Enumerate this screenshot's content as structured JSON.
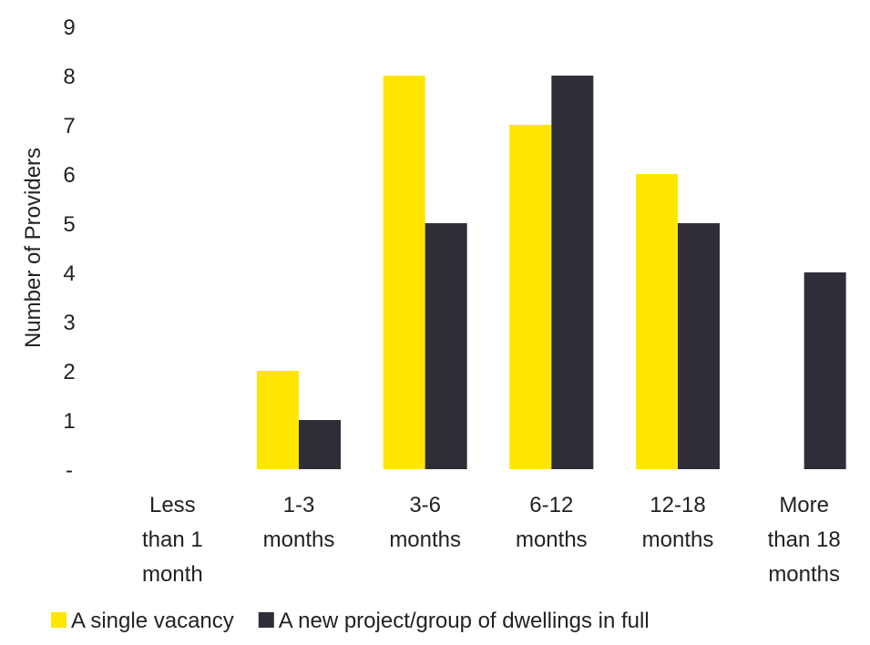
{
  "chart_data": {
    "type": "bar",
    "ylabel": "Number of Providers",
    "xlabel": "",
    "ylim": [
      0,
      9
    ],
    "yticks": [
      "-",
      "1",
      "2",
      "3",
      "4",
      "5",
      "6",
      "7",
      "8",
      "9"
    ],
    "categories": [
      [
        "Less",
        "than 1",
        "month"
      ],
      [
        "1-3",
        "months"
      ],
      [
        "3-6",
        "months"
      ],
      [
        "6-12",
        "months"
      ],
      [
        "12-18",
        "months"
      ],
      [
        "More",
        "than 18",
        "months"
      ]
    ],
    "series": [
      {
        "name": "A single vacancy",
        "color": "#FFE600",
        "values": [
          0,
          2,
          8,
          7,
          6,
          0
        ]
      },
      {
        "name": "A new project/group of dwellings in full",
        "color": "#2E2E38",
        "values": [
          0,
          1,
          5,
          8,
          5,
          4
        ]
      }
    ],
    "grid": false,
    "legend_position": "bottom"
  }
}
